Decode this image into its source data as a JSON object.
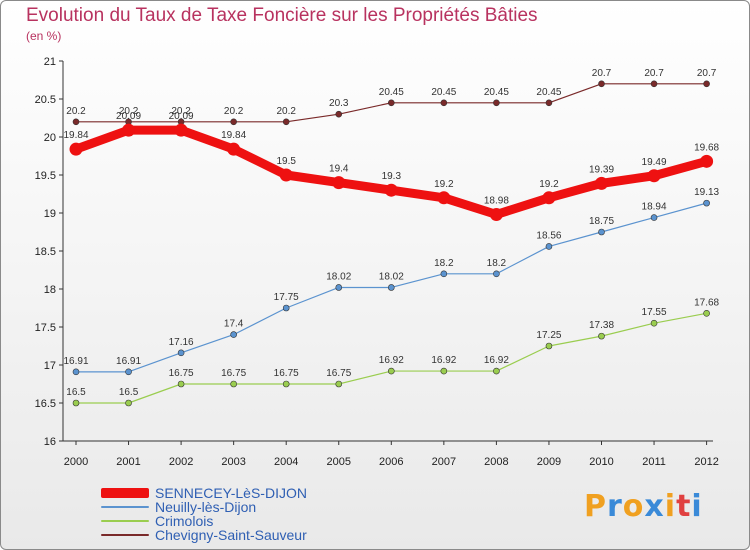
{
  "title": "Evolution du Taux de Taxe Foncière sur les Propriétés Bâties",
  "subtitle": "(en %)",
  "logo": [
    "P",
    "r",
    "o",
    "x",
    "i",
    "t",
    "i"
  ],
  "logo_colors": [
    "#f0a020",
    "#3a8ad8",
    "#f0a020",
    "#3a8ad8",
    "#f0a020",
    "#e04040",
    "#3a8ad8"
  ],
  "chart_data": {
    "type": "line",
    "x": [
      "2000",
      "2001",
      "2002",
      "2003",
      "2004",
      "2005",
      "2006",
      "2007",
      "2008",
      "2009",
      "2010",
      "2011",
      "2012"
    ],
    "ylim": [
      16,
      21
    ],
    "yticks": [
      "16",
      "16.5",
      "17",
      "17.5",
      "18",
      "18.5",
      "19",
      "19.5",
      "20",
      "20.5",
      "21"
    ],
    "legend_position": "bottom-left",
    "series": [
      {
        "name": "SENNECEY-LèS-DIJON",
        "color": "#ee1111",
        "values": [
          19.84,
          20.09,
          20.09,
          19.84,
          19.5,
          19.4,
          19.3,
          19.2,
          18.98,
          19.2,
          19.39,
          19.49,
          19.68
        ],
        "labels": [
          "19.84",
          "20.09",
          "20.09",
          "19.84",
          "19.5",
          "19.4",
          "19.3",
          "19.2",
          "18.98",
          "19.2",
          "19.39",
          "19.49",
          "19.68"
        ]
      },
      {
        "name": "Neuilly-lès-Dijon",
        "color": "#5b93cf",
        "values": [
          16.91,
          16.91,
          17.16,
          17.4,
          17.75,
          18.02,
          18.02,
          18.2,
          18.2,
          18.56,
          18.75,
          18.94,
          19.13
        ],
        "labels": [
          "16.91",
          "16.91",
          "17.16",
          "17.4",
          "17.75",
          "18.02",
          "18.02",
          "18.2",
          "18.2",
          "18.56",
          "18.75",
          "18.94",
          "19.13"
        ]
      },
      {
        "name": "Crimolois",
        "color": "#9acd4f",
        "values": [
          16.5,
          16.5,
          16.75,
          16.75,
          16.75,
          16.75,
          16.92,
          16.92,
          16.92,
          17.25,
          17.38,
          17.55,
          17.68
        ],
        "labels": [
          "16.5",
          "16.5",
          "16.75",
          "16.75",
          "16.75",
          "16.75",
          "16.92",
          "16.92",
          "16.92",
          "17.25",
          "17.38",
          "17.55",
          "17.68"
        ]
      },
      {
        "name": "Chevigny-Saint-Sauveur",
        "color": "#7a2a2a",
        "values": [
          20.2,
          20.2,
          20.2,
          20.2,
          20.2,
          20.3,
          20.45,
          20.45,
          20.45,
          20.45,
          20.7,
          20.7,
          20.7
        ],
        "labels": [
          "20.2",
          "20.2",
          "20.2",
          "20.2",
          "20.2",
          "20.3",
          "20.45",
          "20.45",
          "20.45",
          "20.45",
          "20.7",
          "20.7",
          "20.7"
        ]
      }
    ]
  }
}
